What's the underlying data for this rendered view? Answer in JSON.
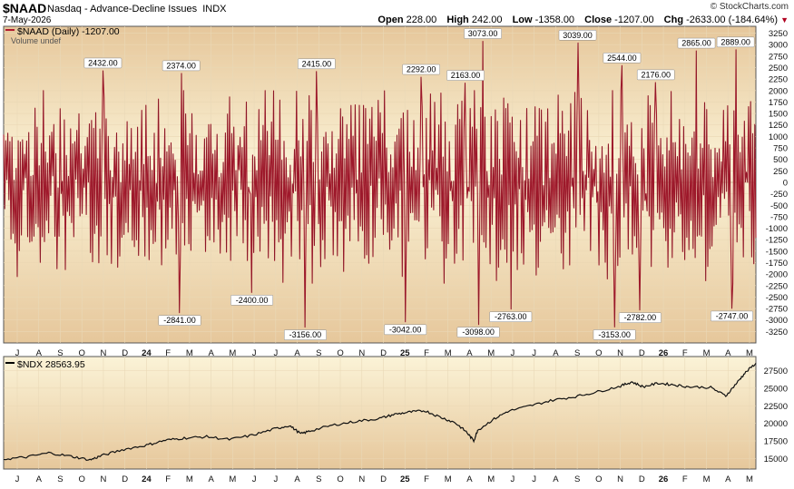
{
  "header": {
    "symbol": "$NAAD",
    "name": "Nasdaq - Advance-Decline Issues",
    "exchange": "INDX",
    "date": "7-May-2026",
    "copyright": "© StockCharts.com",
    "open_label": "Open",
    "open": "228.00",
    "high_label": "High",
    "high": "242.00",
    "low_label": "Low",
    "low": "-1358.00",
    "close_label": "Close",
    "close": "-1207.00",
    "chg_label": "Chg",
    "chg": "-2633.00 (-184.64%)"
  },
  "colors": {
    "panel_top": "#fbf3d7",
    "panel_bottom": "#e6c79b",
    "line": "#b0192e",
    "ndx_line": "#111111"
  },
  "chart_data": [
    {
      "type": "line",
      "legend": "$NAAD (Daily) -1207.00",
      "legend2": "Volume undef",
      "ylim": [
        -3500,
        3400
      ],
      "y_ticks": [
        3250,
        3000,
        2750,
        2500,
        2250,
        2000,
        1750,
        1500,
        1250,
        1000,
        750,
        500,
        250,
        0,
        -250,
        -500,
        -750,
        -1000,
        -1250,
        -1500,
        -1750,
        -2000,
        -2250,
        -2500,
        -2750,
        -3000,
        -3250
      ],
      "x_labels": [
        "J",
        "A",
        "S",
        "O",
        "N",
        "D",
        "24",
        "F",
        "M",
        "A",
        "M",
        "J",
        "J",
        "A",
        "S",
        "O",
        "N",
        "D",
        "25",
        "F",
        "M",
        "A",
        "M",
        "J",
        "J",
        "A",
        "S",
        "O",
        "N",
        "D",
        "26",
        "F",
        "M",
        "A",
        "M"
      ],
      "annotations": [
        {
          "label": "2432.00",
          "x": 0.132,
          "value": 2432
        },
        {
          "label": "2374.00",
          "x": 0.236,
          "value": 2374
        },
        {
          "label": "2415.00",
          "x": 0.416,
          "value": 2415
        },
        {
          "label": "2292.00",
          "x": 0.555,
          "value": 2292
        },
        {
          "label": "2163.00",
          "x": 0.614,
          "value": 2163
        },
        {
          "label": "3073.00",
          "x": 0.637,
          "value": 3073
        },
        {
          "label": "3039.00",
          "x": 0.763,
          "value": 3039
        },
        {
          "label": "2544.00",
          "x": 0.822,
          "value": 2544
        },
        {
          "label": "2176.00",
          "x": 0.867,
          "value": 2176
        },
        {
          "label": "2865.00",
          "x": 0.921,
          "value": 2865
        },
        {
          "label": "2889.00",
          "x": 0.973,
          "value": 2889
        },
        {
          "label": "-2841.00",
          "x": 0.234,
          "value": -2841
        },
        {
          "label": "-2400.00",
          "x": 0.33,
          "value": -2400
        },
        {
          "label": "-3156.00",
          "x": 0.401,
          "value": -3156
        },
        {
          "label": "-3042.00",
          "x": 0.534,
          "value": -3042
        },
        {
          "label": "-3098.00",
          "x": 0.631,
          "value": -3098
        },
        {
          "label": "-2763.00",
          "x": 0.674,
          "value": -2763
        },
        {
          "label": "-3153.00",
          "x": 0.812,
          "value": -3153
        },
        {
          "label": "-2782.00",
          "x": 0.846,
          "value": -2782
        },
        {
          "label": "-2747.00",
          "x": 0.968,
          "value": -2747
        }
      ]
    },
    {
      "type": "line",
      "legend": "$NDX 28563.95",
      "ylim": [
        13500,
        29500
      ],
      "y_ticks": [
        27500,
        25000,
        22500,
        20000,
        17500,
        15000
      ],
      "x_labels": [
        "J",
        "A",
        "S",
        "O",
        "N",
        "D",
        "24",
        "F",
        "M",
        "A",
        "M",
        "J",
        "J",
        "A",
        "S",
        "O",
        "N",
        "D",
        "25",
        "F",
        "M",
        "A",
        "M",
        "J",
        "J",
        "A",
        "S",
        "O",
        "N",
        "D",
        "26",
        "F",
        "M",
        "A",
        "M"
      ],
      "points": [
        [
          0,
          14900
        ],
        [
          0.03,
          15200
        ],
        [
          0.06,
          15800
        ],
        [
          0.09,
          15300
        ],
        [
          0.115,
          14800
        ],
        [
          0.13,
          15400
        ],
        [
          0.16,
          16300
        ],
        [
          0.19,
          16900
        ],
        [
          0.215,
          17600
        ],
        [
          0.24,
          17900
        ],
        [
          0.27,
          18100
        ],
        [
          0.3,
          17700
        ],
        [
          0.33,
          18300
        ],
        [
          0.36,
          19200
        ],
        [
          0.38,
          19700
        ],
        [
          0.395,
          18500
        ],
        [
          0.41,
          19000
        ],
        [
          0.44,
          19800
        ],
        [
          0.47,
          20300
        ],
        [
          0.5,
          20700
        ],
        [
          0.52,
          21300
        ],
        [
          0.54,
          21600
        ],
        [
          0.56,
          21800
        ],
        [
          0.58,
          20900
        ],
        [
          0.6,
          20100
        ],
        [
          0.615,
          18800
        ],
        [
          0.625,
          17500
        ],
        [
          0.63,
          19000
        ],
        [
          0.65,
          20500
        ],
        [
          0.67,
          21700
        ],
        [
          0.7,
          22500
        ],
        [
          0.73,
          23300
        ],
        [
          0.76,
          23800
        ],
        [
          0.79,
          24500
        ],
        [
          0.82,
          25300
        ],
        [
          0.835,
          25900
        ],
        [
          0.85,
          25200
        ],
        [
          0.87,
          25700
        ],
        [
          0.89,
          25500
        ],
        [
          0.91,
          25200
        ],
        [
          0.94,
          25100
        ],
        [
          0.96,
          23900
        ],
        [
          0.975,
          25800
        ],
        [
          0.985,
          27100
        ],
        [
          1.0,
          28564
        ]
      ]
    }
  ]
}
